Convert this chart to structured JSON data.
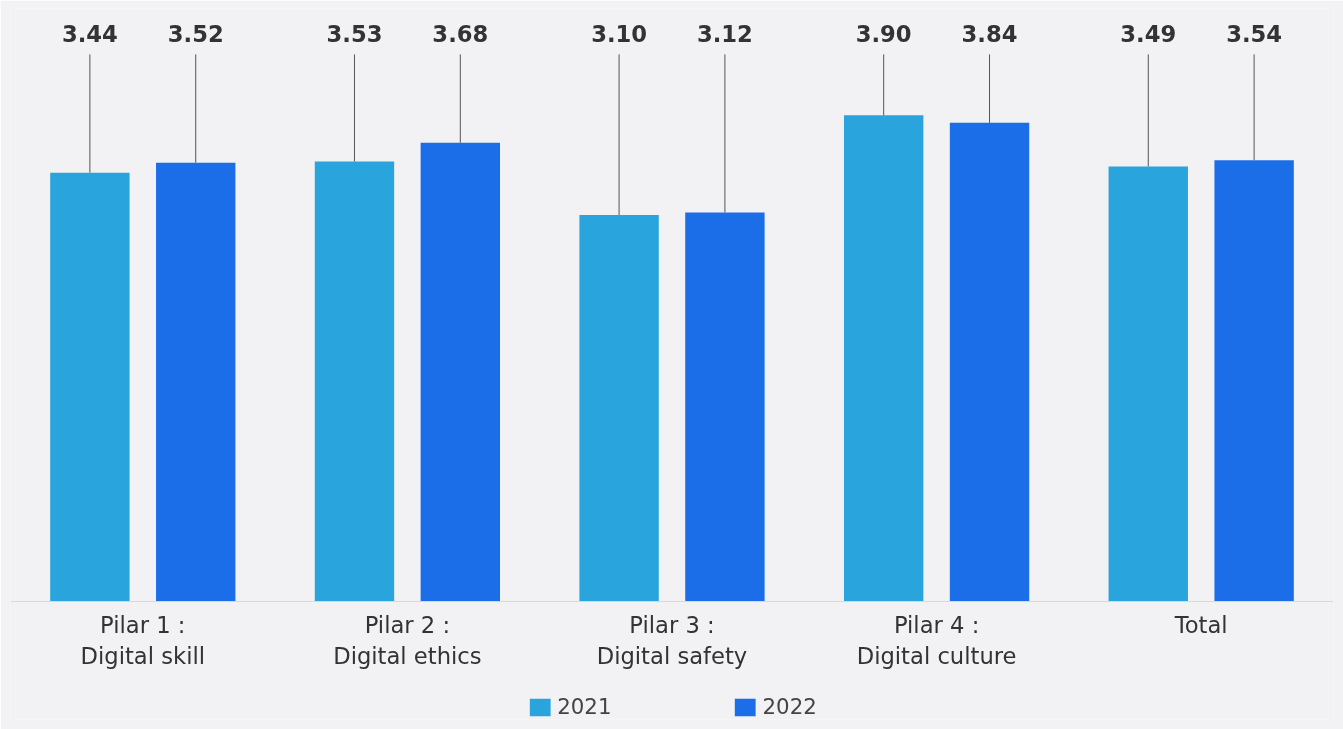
{
  "chart_data": {
    "type": "bar",
    "categories": [
      "Pilar 1 :\nDigital skill",
      "Pilar 2 :\nDigital ethics",
      "Pilar 3 :\nDigital safety",
      "Pilar 4 :\nDigital culture",
      "Total"
    ],
    "series": [
      {
        "name": "2021",
        "color": "#2aa4dc",
        "values": [
          3.44,
          3.53,
          3.1,
          3.9,
          3.49
        ],
        "value_labels": [
          "3.44",
          "3.53",
          "3.10",
          "3.90",
          "3.49"
        ]
      },
      {
        "name": "2022",
        "color": "#1b6ee8",
        "values": [
          3.52,
          3.68,
          3.12,
          3.84,
          3.54
        ],
        "value_labels": [
          "3.52",
          "3.68",
          "3.12",
          "3.84",
          "3.54"
        ]
      }
    ],
    "legend": "bottom",
    "grid": false
  }
}
